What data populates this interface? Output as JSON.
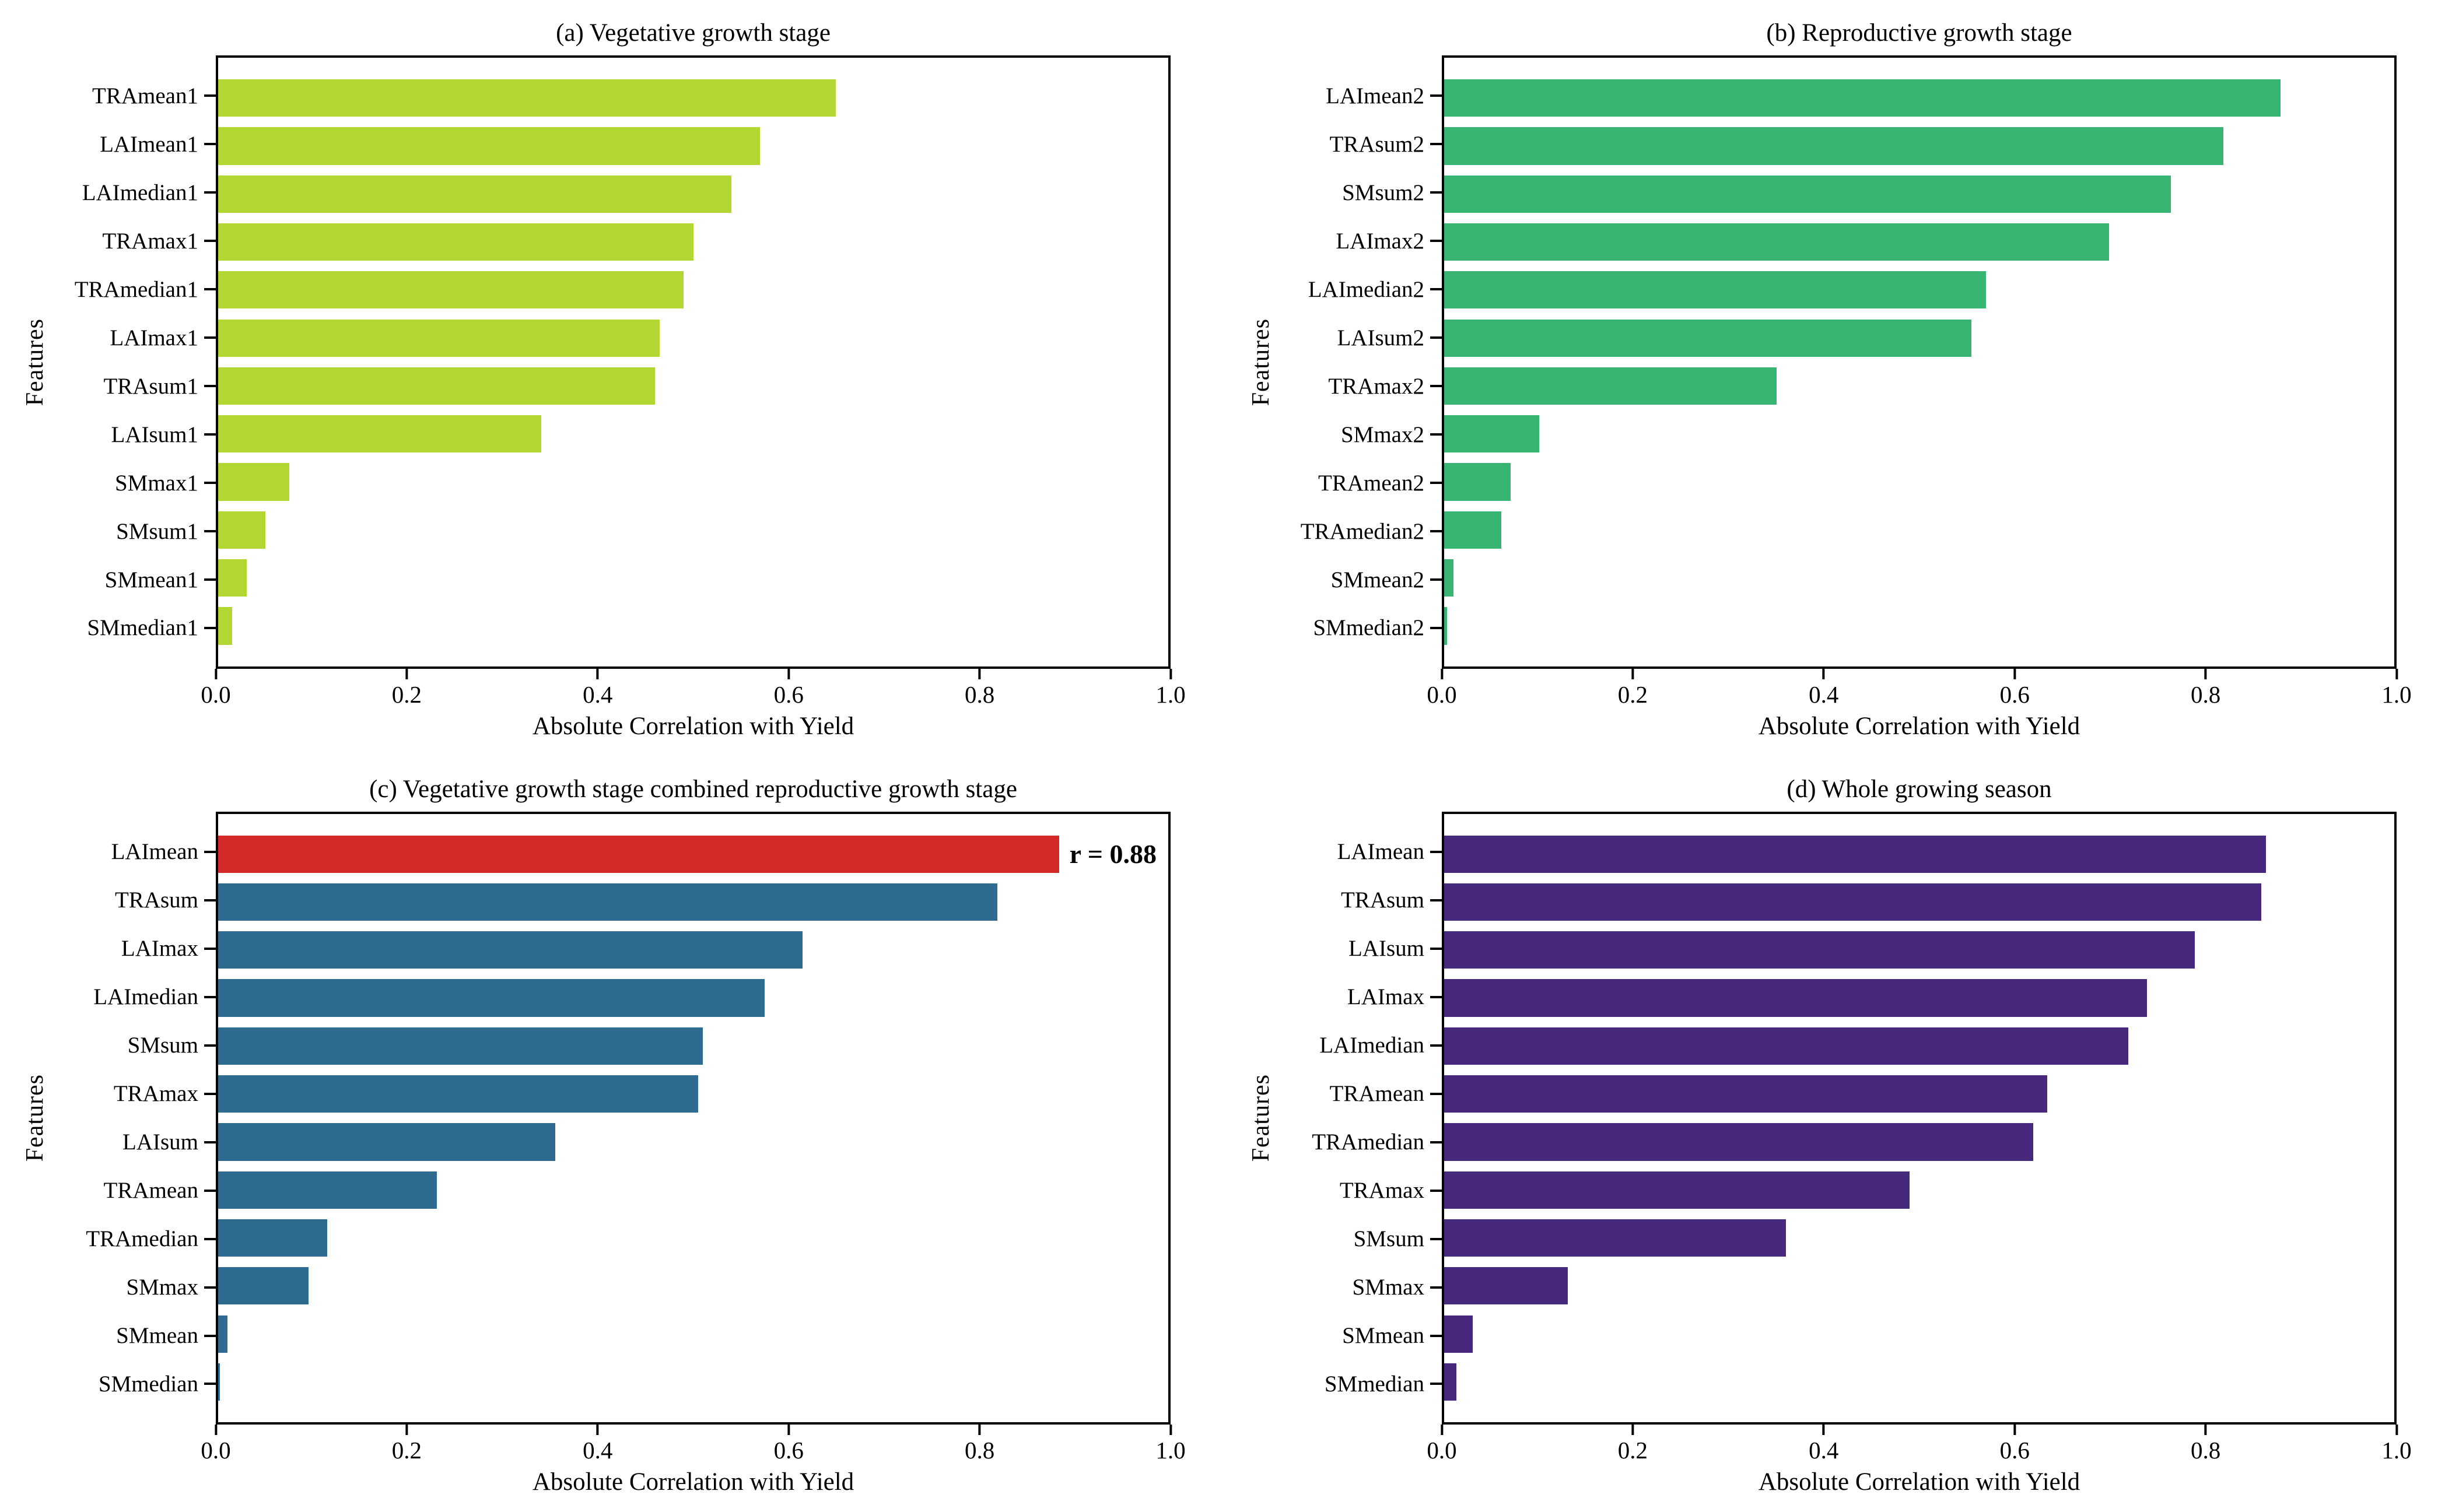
{
  "figure": {
    "layout": "2x2 grid of horizontal bar charts",
    "background": "#ffffff",
    "axis_color": "#000000"
  },
  "chart_data": [
    {
      "type": "bar",
      "orientation": "horizontal",
      "title": "(a) Vegetative growth stage",
      "xlabel": "Absolute Correlation with Yield",
      "ylabel": "Features",
      "xlim": [
        0,
        1
      ],
      "x_ticks": [
        0.0,
        0.2,
        0.4,
        0.6,
        0.8,
        1.0
      ],
      "x_tick_labels": [
        "0.0",
        "0.2",
        "0.4",
        "0.6",
        "0.8",
        "1.0"
      ],
      "grid": false,
      "bar_color": "#b2d732",
      "categories": [
        "TRAmean1",
        "LAImean1",
        "LAImedian1",
        "TRAmax1",
        "TRAmedian1",
        "LAImax1",
        "TRAsum1",
        "LAIsum1",
        "SMmax1",
        "SMsum1",
        "SMmean1",
        "SMmedian1"
      ],
      "values": [
        0.65,
        0.57,
        0.54,
        0.5,
        0.49,
        0.465,
        0.46,
        0.34,
        0.075,
        0.05,
        0.03,
        0.015
      ]
    },
    {
      "type": "bar",
      "orientation": "horizontal",
      "title": "(b) Reproductive growth stage",
      "xlabel": "Absolute Correlation with Yield",
      "ylabel": "Features",
      "xlim": [
        0,
        1
      ],
      "x_ticks": [
        0.0,
        0.2,
        0.4,
        0.6,
        0.8,
        1.0
      ],
      "x_tick_labels": [
        "0.0",
        "0.2",
        "0.4",
        "0.6",
        "0.8",
        "1.0"
      ],
      "grid": false,
      "bar_color": "#38b573",
      "categories": [
        "LAImean2",
        "TRAsum2",
        "SMsum2",
        "LAImax2",
        "LAImedian2",
        "LAIsum2",
        "TRAmax2",
        "SMmax2",
        "TRAmean2",
        "TRAmedian2",
        "SMmean2",
        "SMmedian2"
      ],
      "values": [
        0.88,
        0.82,
        0.765,
        0.7,
        0.57,
        0.555,
        0.35,
        0.1,
        0.07,
        0.06,
        0.01,
        0.003
      ]
    },
    {
      "type": "bar",
      "orientation": "horizontal",
      "title": "(c) Vegetative growth stage combined reproductive growth stage",
      "xlabel": "Absolute Correlation with Yield",
      "ylabel": "Features",
      "xlim": [
        0,
        1
      ],
      "x_ticks": [
        0.0,
        0.2,
        0.4,
        0.6,
        0.8,
        1.0
      ],
      "x_tick_labels": [
        "0.0",
        "0.2",
        "0.4",
        "0.6",
        "0.8",
        "1.0"
      ],
      "grid": false,
      "bar_color": "#2e6b8e",
      "highlight": {
        "index": 0,
        "color": "#d32929",
        "annotation": "r = 0.88"
      },
      "categories": [
        "LAImean",
        "TRAsum",
        "LAImax",
        "LAImedian",
        "SMsum",
        "TRAmax",
        "LAIsum",
        "TRAmean",
        "TRAmedian",
        "SMmax",
        "SMmean",
        "SMmedian"
      ],
      "values": [
        0.885,
        0.82,
        0.615,
        0.575,
        0.51,
        0.505,
        0.355,
        0.23,
        0.115,
        0.095,
        0.01,
        0.002
      ]
    },
    {
      "type": "bar",
      "orientation": "horizontal",
      "title": "(d) Whole growing season",
      "xlabel": "Absolute Correlation with Yield",
      "ylabel": "Features",
      "xlim": [
        0,
        1
      ],
      "x_ticks": [
        0.0,
        0.2,
        0.4,
        0.6,
        0.8,
        1.0
      ],
      "x_tick_labels": [
        "0.0",
        "0.2",
        "0.4",
        "0.6",
        "0.8",
        "1.0"
      ],
      "grid": false,
      "bar_color": "#46287c",
      "categories": [
        "LAImean",
        "TRAsum",
        "LAIsum",
        "LAImax",
        "LAImedian",
        "TRAmean",
        "TRAmedian",
        "TRAmax",
        "SMsum",
        "SMmax",
        "SMmean",
        "SMmedian"
      ],
      "values": [
        0.865,
        0.86,
        0.79,
        0.74,
        0.72,
        0.635,
        0.62,
        0.49,
        0.36,
        0.13,
        0.03,
        0.013
      ]
    }
  ]
}
